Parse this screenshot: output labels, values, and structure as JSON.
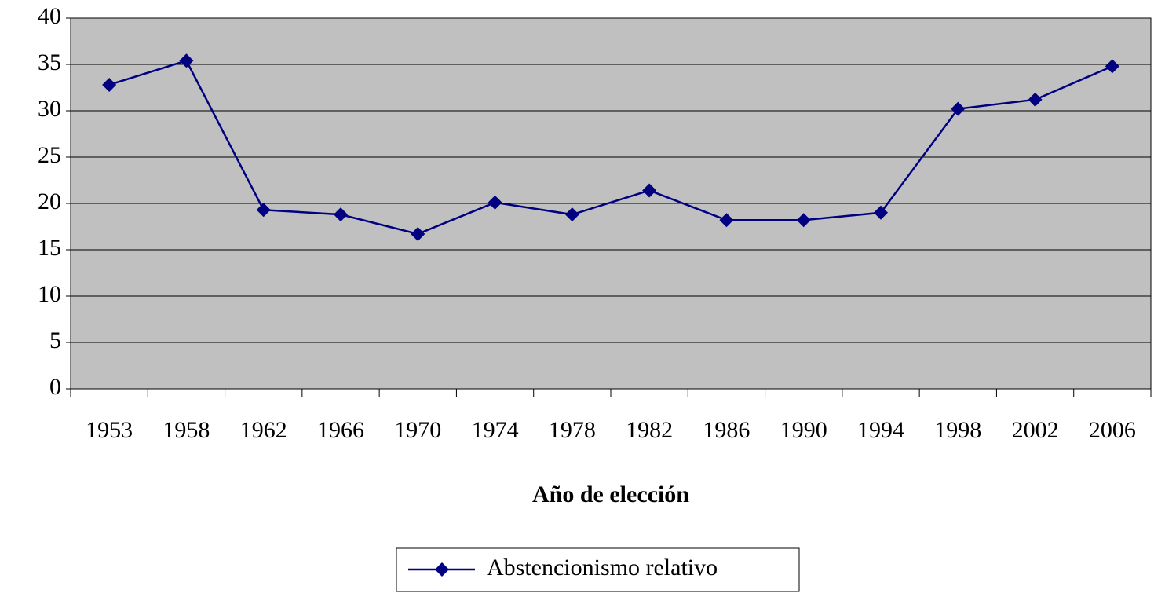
{
  "chart_data": {
    "type": "line",
    "x_label": "Año de elección",
    "categories": [
      "1953",
      "1958",
      "1962",
      "1966",
      "1970",
      "1974",
      "1978",
      "1982",
      "1986",
      "1990",
      "1994",
      "1998",
      "2002",
      "2006"
    ],
    "series": [
      {
        "name": "Abstencionismo relativo",
        "color": "#000080",
        "values": [
          32.8,
          35.4,
          19.3,
          18.8,
          16.7,
          20.1,
          18.8,
          21.4,
          18.2,
          18.2,
          19.0,
          30.2,
          31.2,
          34.8
        ]
      }
    ],
    "ylim": [
      0,
      40
    ],
    "yticks": [
      0,
      5,
      10,
      15,
      20,
      25,
      30,
      35,
      40
    ],
    "grid": true,
    "plot_background": "#c0c0c0",
    "legend": "bottom"
  }
}
